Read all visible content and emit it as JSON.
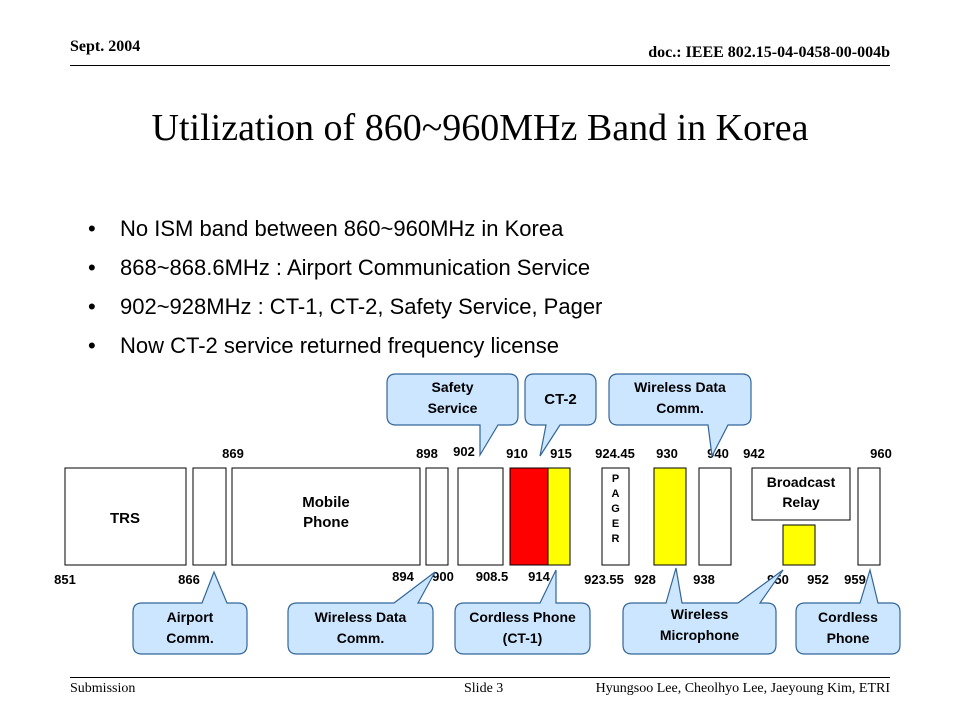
{
  "header": {
    "date": "Sept. 2004",
    "doc": "doc.: IEEE 802.15-04-0458-00-004b"
  },
  "title": "Utilization of 860~960MHz Band in Korea",
  "bullets": [
    "No ISM band between 860~960MHz in Korea",
    "868~868.6MHz : Airport Communication Service",
    "902~928MHz : CT-1, CT-2, Safety Service, Pager",
    "Now CT-2 service returned frequency license"
  ],
  "bullet_symbol": "•",
  "diagram": {
    "top_freqs": [
      "869",
      "898",
      "902",
      "910",
      "915",
      "924.45",
      "930",
      "940",
      "942",
      "960"
    ],
    "bottom_freqs": [
      "851",
      "866",
      "894",
      "900",
      "908.5",
      "914",
      "923.55",
      "928",
      "938",
      "950",
      "952",
      "959"
    ],
    "blocks": {
      "trs": "TRS",
      "mobile_phone": "Mobile Phone",
      "pager": "PAGER",
      "broadcast_relay": "Broadcast Relay"
    },
    "callouts": {
      "safety_service": "Safety Service",
      "ct2": "CT-2",
      "wireless_data_top": "Wireless Data Comm.",
      "airport": "Airport Comm.",
      "wireless_data_bottom": "Wireless Data Comm.",
      "cordless_ct1": "Cordless Phone (CT-1)",
      "wireless_mic": "Wireless Microphone",
      "cordless_phone": "Cordless Phone"
    },
    "colors": {
      "ct2": "#ff0000",
      "highlight": "#ffff00",
      "callout_fill": "#cce6ff",
      "callout_stroke": "#336699"
    }
  },
  "footer": {
    "submission": "Submission",
    "slide": "Slide 3",
    "authors": "Hyungsoo Lee, Cheolhyo Lee, Jaeyoung Kim, ETRI"
  }
}
